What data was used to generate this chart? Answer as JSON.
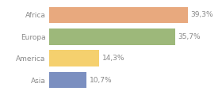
{
  "categories": [
    "Africa",
    "Europa",
    "America",
    "Asia"
  ],
  "values": [
    39.3,
    35.7,
    14.3,
    10.7
  ],
  "labels": [
    "39,3%",
    "35,7%",
    "14,3%",
    "10,7%"
  ],
  "bar_colors": [
    "#e8a97e",
    "#9db87a",
    "#f5d06e",
    "#7b8fc0"
  ],
  "background_color": "#ffffff",
  "xlim": [
    0,
    47
  ],
  "bar_height": 0.75,
  "label_fontsize": 6.5,
  "tick_fontsize": 6.5,
  "text_color": "#888888"
}
